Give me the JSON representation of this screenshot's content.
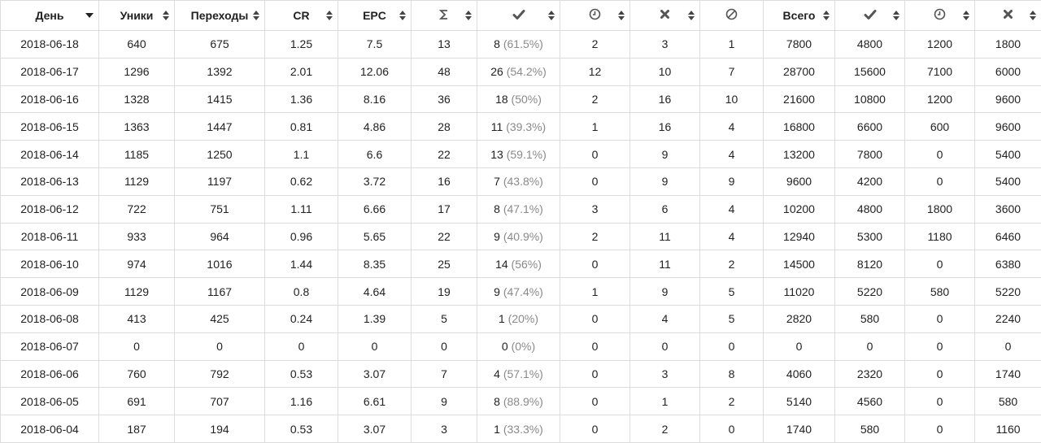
{
  "headers": [
    {
      "key": "day",
      "label": "День",
      "icon": null,
      "sort": "desc"
    },
    {
      "key": "uniques",
      "label": "Уники",
      "icon": null,
      "sort": "both"
    },
    {
      "key": "clicks",
      "label": "Переходы",
      "icon": null,
      "sort": "both"
    },
    {
      "key": "cr",
      "label": "CR",
      "icon": null,
      "sort": "both"
    },
    {
      "key": "epc",
      "label": "EPC",
      "icon": null,
      "sort": "both"
    },
    {
      "key": "total_leads",
      "label": "",
      "icon": "sigma-icon",
      "sort": "both"
    },
    {
      "key": "approved_leads",
      "label": "",
      "icon": "check-icon",
      "sort": "both"
    },
    {
      "key": "pending_leads",
      "label": "",
      "icon": "clock-icon",
      "sort": "both"
    },
    {
      "key": "rejected_leads",
      "label": "",
      "icon": "cross-icon",
      "sort": "both"
    },
    {
      "key": "trash_leads",
      "label": "",
      "icon": "ban-icon",
      "sort": "none"
    },
    {
      "key": "total_sum",
      "label": "Всего",
      "icon": null,
      "sort": "both"
    },
    {
      "key": "approved_sum",
      "label": "",
      "icon": "check-icon",
      "sort": "both"
    },
    {
      "key": "pending_sum",
      "label": "",
      "icon": "clock-icon",
      "sort": "both"
    },
    {
      "key": "rejected_sum",
      "label": "",
      "icon": "cross-icon",
      "sort": "both"
    }
  ],
  "rows": [
    [
      "2018-06-18",
      "640",
      "675",
      "1.25",
      "7.5",
      "13",
      "8",
      "(61.5%)",
      "2",
      "3",
      "1",
      "7800",
      "4800",
      "1200",
      "1800"
    ],
    [
      "2018-06-17",
      "1296",
      "1392",
      "2.01",
      "12.06",
      "48",
      "26",
      "(54.2%)",
      "12",
      "10",
      "7",
      "28700",
      "15600",
      "7100",
      "6000"
    ],
    [
      "2018-06-16",
      "1328",
      "1415",
      "1.36",
      "8.16",
      "36",
      "18",
      "(50%)",
      "2",
      "16",
      "10",
      "21600",
      "10800",
      "1200",
      "9600"
    ],
    [
      "2018-06-15",
      "1363",
      "1447",
      "0.81",
      "4.86",
      "28",
      "11",
      "(39.3%)",
      "1",
      "16",
      "4",
      "16800",
      "6600",
      "600",
      "9600"
    ],
    [
      "2018-06-14",
      "1185",
      "1250",
      "1.1",
      "6.6",
      "22",
      "13",
      "(59.1%)",
      "0",
      "9",
      "4",
      "13200",
      "7800",
      "0",
      "5400"
    ],
    [
      "2018-06-13",
      "1129",
      "1197",
      "0.62",
      "3.72",
      "16",
      "7",
      "(43.8%)",
      "0",
      "9",
      "9",
      "9600",
      "4200",
      "0",
      "5400"
    ],
    [
      "2018-06-12",
      "722",
      "751",
      "1.11",
      "6.66",
      "17",
      "8",
      "(47.1%)",
      "3",
      "6",
      "4",
      "10200",
      "4800",
      "1800",
      "3600"
    ],
    [
      "2018-06-11",
      "933",
      "964",
      "0.96",
      "5.65",
      "22",
      "9",
      "(40.9%)",
      "2",
      "11",
      "4",
      "12940",
      "5300",
      "1180",
      "6460"
    ],
    [
      "2018-06-10",
      "974",
      "1016",
      "1.44",
      "8.35",
      "25",
      "14",
      "(56%)",
      "0",
      "11",
      "2",
      "14500",
      "8120",
      "0",
      "6380"
    ],
    [
      "2018-06-09",
      "1129",
      "1167",
      "0.8",
      "4.64",
      "19",
      "9",
      "(47.4%)",
      "1",
      "9",
      "5",
      "11020",
      "5220",
      "580",
      "5220"
    ],
    [
      "2018-06-08",
      "413",
      "425",
      "0.24",
      "1.39",
      "5",
      "1",
      "(20%)",
      "0",
      "4",
      "5",
      "2820",
      "580",
      "0",
      "2240"
    ],
    [
      "2018-06-07",
      "0",
      "0",
      "0",
      "0",
      "0",
      "0",
      "(0%)",
      "0",
      "0",
      "0",
      "0",
      "0",
      "0",
      "0"
    ],
    [
      "2018-06-06",
      "760",
      "792",
      "0.53",
      "3.07",
      "7",
      "4",
      "(57.1%)",
      "0",
      "3",
      "8",
      "4060",
      "2320",
      "0",
      "1740"
    ],
    [
      "2018-06-05",
      "691",
      "707",
      "1.16",
      "6.61",
      "9",
      "8",
      "(88.9%)",
      "0",
      "1",
      "2",
      "5140",
      "4560",
      "0",
      "580"
    ],
    [
      "2018-06-04",
      "187",
      "194",
      "0.53",
      "3.07",
      "3",
      "1",
      "(33.3%)",
      "0",
      "2",
      "0",
      "1740",
      "580",
      "0",
      "1160"
    ]
  ],
  "colors": {
    "text": "#222222",
    "muted": "#8a8a8a",
    "border": "#dcdcdc",
    "icon": "#555555"
  }
}
